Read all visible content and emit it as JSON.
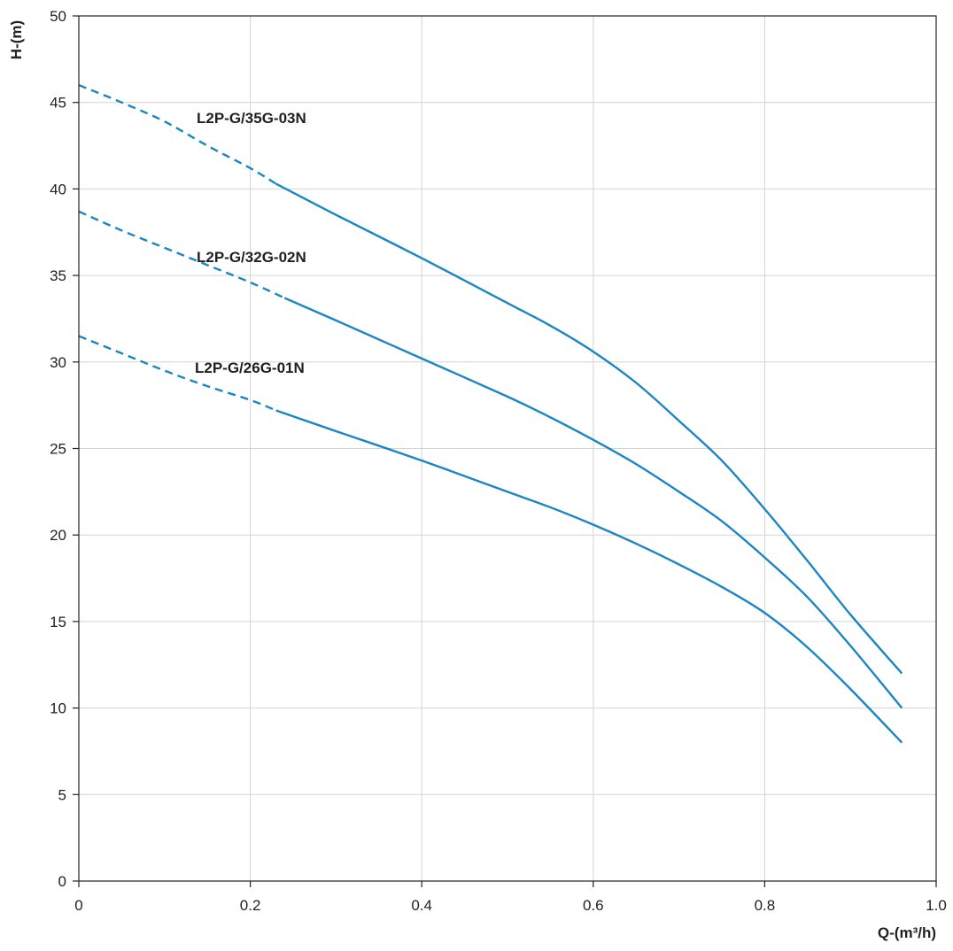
{
  "chart_data": {
    "type": "line",
    "title": "",
    "xlabel": "Q-(m³/h)",
    "ylabel": "H-(m)",
    "xlim": [
      0,
      1.0
    ],
    "ylim": [
      0,
      50
    ],
    "xticks": [
      "0",
      "0.2",
      "0.4",
      "0.6",
      "0.8",
      "1.0"
    ],
    "yticks": [
      "0",
      "5",
      "10",
      "15",
      "20",
      "25",
      "30",
      "35",
      "40",
      "45",
      "50"
    ],
    "grid": true,
    "line_color": "#1b86c4",
    "series": [
      {
        "name": "L2P-G/35G-03N",
        "dashed_until": 0.23,
        "x": [
          0,
          0.05,
          0.1,
          0.15,
          0.2,
          0.23,
          0.3,
          0.4,
          0.5,
          0.55,
          0.6,
          0.65,
          0.7,
          0.75,
          0.8,
          0.85,
          0.9,
          0.96
        ],
        "y": [
          46.0,
          45.0,
          43.9,
          42.5,
          41.2,
          40.3,
          38.5,
          36.0,
          33.4,
          32.1,
          30.6,
          28.8,
          26.6,
          24.3,
          21.5,
          18.5,
          15.4,
          12.0
        ]
      },
      {
        "name": "L2P-G/32G-02N",
        "dashed_until": 0.24,
        "x": [
          0,
          0.05,
          0.1,
          0.15,
          0.2,
          0.24,
          0.3,
          0.4,
          0.5,
          0.55,
          0.6,
          0.65,
          0.7,
          0.75,
          0.8,
          0.85,
          0.9,
          0.96
        ],
        "y": [
          38.7,
          37.6,
          36.6,
          35.6,
          34.6,
          33.7,
          32.4,
          30.2,
          28.0,
          26.8,
          25.5,
          24.1,
          22.5,
          20.8,
          18.7,
          16.4,
          13.6,
          10.0
        ]
      },
      {
        "name": "L2P-G/26G-01N",
        "dashed_until": 0.23,
        "x": [
          0,
          0.05,
          0.1,
          0.15,
          0.2,
          0.23,
          0.3,
          0.4,
          0.5,
          0.55,
          0.6,
          0.65,
          0.7,
          0.75,
          0.8,
          0.85,
          0.9,
          0.96
        ],
        "y": [
          31.5,
          30.5,
          29.5,
          28.6,
          27.8,
          27.2,
          26.0,
          24.3,
          22.5,
          21.6,
          20.6,
          19.5,
          18.3,
          17.0,
          15.5,
          13.5,
          11.1,
          8.0
        ]
      }
    ]
  }
}
